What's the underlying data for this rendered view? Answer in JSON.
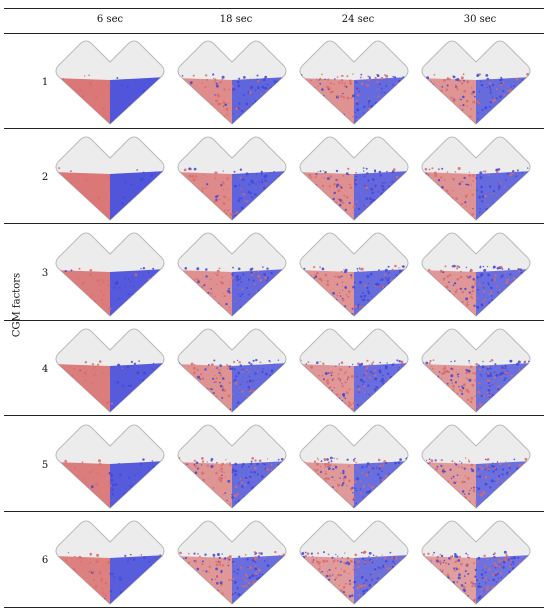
{
  "table": {
    "columns": [
      "6 sec",
      "18 sec",
      "24 sec",
      "30 sec"
    ],
    "rows": [
      "1",
      "2",
      "3",
      "4",
      "5",
      "6"
    ],
    "row_axis_label": "CGM factors"
  },
  "colors": {
    "vessel_fill": "#ececec",
    "vessel_stroke": "#b9b9b9",
    "particle_red": "#d96a6a",
    "particle_blue": "#3f45d8"
  },
  "mixing_state": [
    [
      0.0,
      0.45,
      0.6,
      0.65
    ],
    [
      0.0,
      0.4,
      0.55,
      0.6
    ],
    [
      0.1,
      0.55,
      0.65,
      0.7
    ],
    [
      0.15,
      0.6,
      0.7,
      0.75
    ],
    [
      0.15,
      0.65,
      0.75,
      0.8
    ],
    [
      0.2,
      0.7,
      0.8,
      0.85
    ]
  ]
}
